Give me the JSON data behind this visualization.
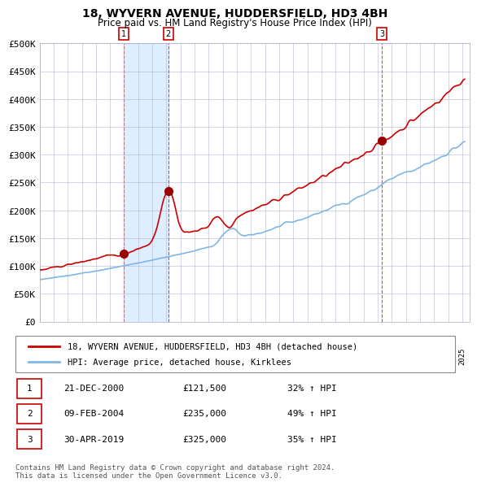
{
  "title": "18, WYVERN AVENUE, HUDDERSFIELD, HD3 4BH",
  "subtitle": "Price paid vs. HM Land Registry's House Price Index (HPI)",
  "xlabel": "",
  "ylabel": "",
  "ylim": [
    0,
    500000
  ],
  "yticks": [
    0,
    50000,
    100000,
    150000,
    200000,
    250000,
    300000,
    350000,
    400000,
    450000,
    500000
  ],
  "ytick_labels": [
    "£0",
    "£50K",
    "£100K",
    "£150K",
    "£200K",
    "£250K",
    "£300K",
    "£350K",
    "£400K",
    "£450K",
    "£500K"
  ],
  "hpi_color": "#7EB6E8",
  "price_color": "#CC0000",
  "marker_color": "#990000",
  "sale_dates": [
    "2000-12-21",
    "2004-02-09",
    "2019-04-30"
  ],
  "sale_prices": [
    121500,
    235000,
    325000
  ],
  "sale_labels": [
    "1",
    "2",
    "3"
  ],
  "sale_info": [
    {
      "label": "1",
      "date": "21-DEC-2000",
      "price": "£121,500",
      "pct": "32% ↑ HPI"
    },
    {
      "label": "2",
      "date": "09-FEB-2004",
      "price": "£235,000",
      "pct": "49% ↑ HPI"
    },
    {
      "label": "3",
      "date": "30-APR-2019",
      "price": "£325,000",
      "pct": "35% ↑ HPI"
    }
  ],
  "legend_entries": [
    {
      "label": "18, WYVERN AVENUE, HUDDERSFIELD, HD3 4BH (detached house)",
      "color": "#CC0000"
    },
    {
      "label": "HPI: Average price, detached house, Kirklees",
      "color": "#7EB6E8"
    }
  ],
  "footer_text": "Contains HM Land Registry data © Crown copyright and database right 2024.\nThis data is licensed under the Open Government Licence v3.0.",
  "background_color": "#FFFFFF",
  "plot_bg_color": "#FFFFFF",
  "grid_color": "#AAAACC",
  "shade_color": "#DDEEFF"
}
